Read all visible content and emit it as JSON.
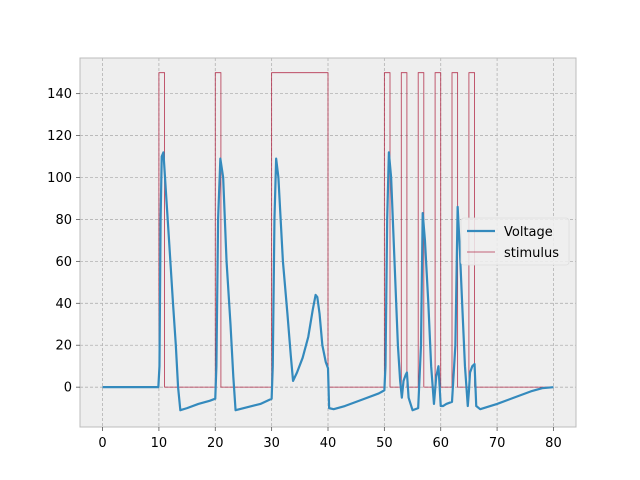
{
  "chart_data": {
    "type": "line",
    "title": "",
    "xlabel": "",
    "ylabel": "",
    "xlim": [
      -4,
      84
    ],
    "ylim": [
      -19,
      157
    ],
    "xticks": [
      0,
      10,
      20,
      30,
      40,
      50,
      60,
      70,
      80
    ],
    "yticks": [
      0,
      20,
      40,
      60,
      80,
      100,
      120,
      140
    ],
    "grid": true,
    "legend_position": "center-right",
    "colors": {
      "voltage": "#348abd",
      "stimulus": "#a60628",
      "axes_bg": "#eeeeee",
      "grid": "#b2b2b2",
      "spine": "#bcbcbc"
    },
    "series": [
      {
        "name": "Voltage",
        "kind": "line",
        "x": [
          0,
          9.9,
          10.1,
          10.3,
          10.5,
          10.8,
          11.2,
          11.8,
          12.5,
          13.0,
          13.4,
          13.8,
          15,
          17,
          19,
          20,
          20.2,
          20.5,
          20.9,
          21.4,
          22,
          22.7,
          23.2,
          23.6,
          25,
          28,
          30,
          30.2,
          30.5,
          30.8,
          31.2,
          32,
          32.8,
          33.4,
          33.8,
          34.5,
          35.5,
          36.5,
          37.3,
          37.8,
          38.1,
          38.5,
          39,
          39.6,
          40.0,
          40.2,
          41,
          43,
          46,
          49,
          50,
          50.2,
          50.5,
          50.8,
          51.2,
          51.8,
          52.4,
          52.8,
          53.1,
          53.4,
          53.8,
          54.0,
          54.3,
          55,
          56,
          56.5,
          56.8,
          57.2,
          57.8,
          58.3,
          58.8,
          59.2,
          59.6,
          60.0,
          60.4,
          61,
          62,
          62.6,
          63.0,
          63.4,
          63.8,
          64.3,
          64.8,
          65.0,
          65.2,
          65.6,
          66.0,
          66.3,
          67,
          70,
          73,
          76,
          78,
          80
        ],
        "y": [
          0,
          0,
          10,
          80,
          110,
          112,
          95,
          70,
          40,
          20,
          0,
          -11,
          -10,
          -8,
          -6.5,
          -5.5,
          10,
          80,
          109,
          100,
          60,
          30,
          5,
          -11,
          -10,
          -8,
          -5.5,
          10,
          80,
          109,
          100,
          60,
          35,
          15,
          3,
          7,
          14,
          24,
          37,
          44,
          43,
          35,
          20,
          12,
          9,
          -10,
          -10.5,
          -9,
          -6,
          -3,
          -1.5,
          10,
          80,
          112,
          100,
          60,
          20,
          3,
          -5,
          3,
          6,
          7,
          -5,
          -11,
          -10,
          20,
          83,
          70,
          40,
          10,
          -8,
          5,
          10,
          -9,
          -9,
          -8,
          -7,
          20,
          86,
          65,
          40,
          10,
          -9,
          -2,
          7,
          10,
          11,
          -9,
          -10.5,
          -8,
          -5,
          -2,
          -0.5,
          0
        ]
      },
      {
        "name": "stimulus",
        "kind": "step",
        "x": [
          0,
          10,
          10,
          11,
          11,
          20,
          20,
          21,
          21,
          30,
          30,
          40,
          40,
          50,
          50,
          51,
          51,
          53,
          53,
          54,
          54,
          56,
          56,
          57,
          57,
          59,
          59,
          60,
          60,
          62,
          62,
          63,
          63,
          65,
          65,
          66,
          66,
          80
        ],
        "y": [
          0,
          0,
          150,
          150,
          0,
          0,
          150,
          150,
          0,
          0,
          150,
          150,
          0,
          0,
          150,
          150,
          0,
          0,
          150,
          150,
          0,
          0,
          150,
          150,
          0,
          0,
          150,
          150,
          0,
          0,
          150,
          150,
          0,
          0,
          150,
          150,
          0,
          0
        ]
      }
    ]
  }
}
